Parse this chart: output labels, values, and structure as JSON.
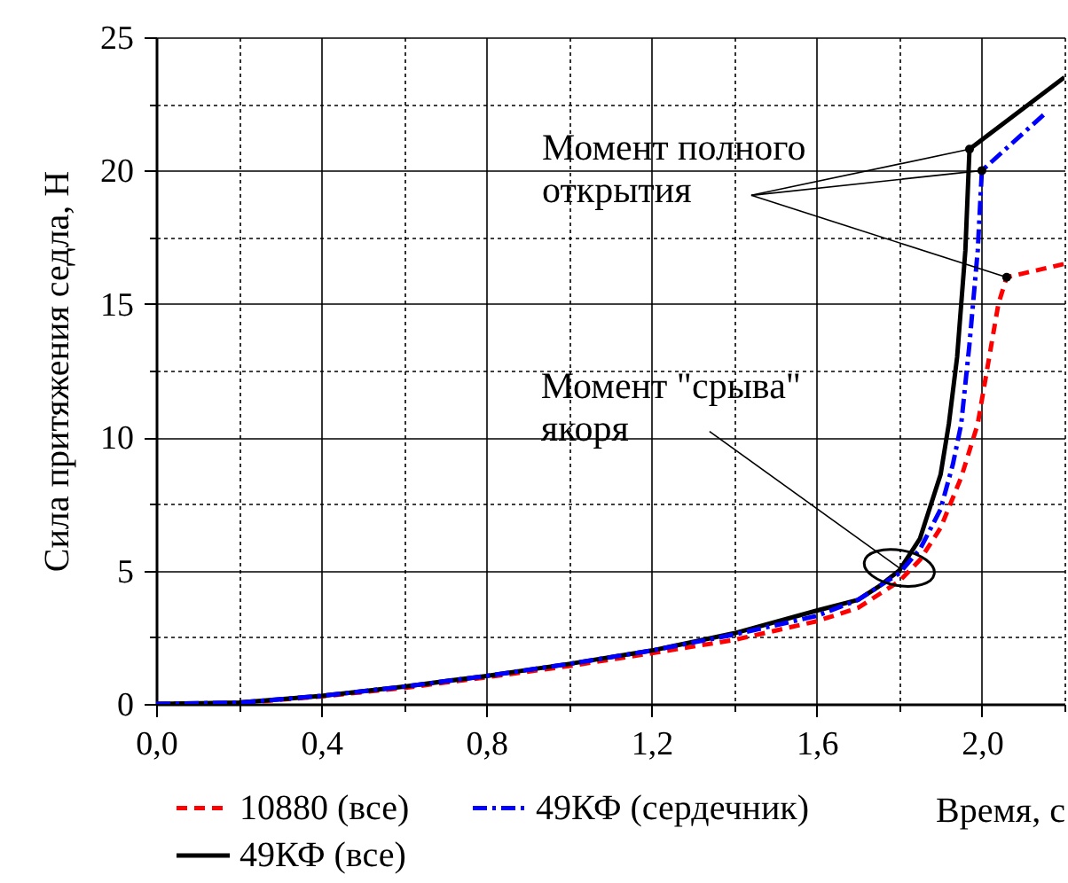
{
  "chart_data": {
    "type": "line",
    "xlabel": "Время, с",
    "ylabel": "Сила притяжения седла, Н",
    "xlim": [
      0,
      2.2
    ],
    "ylim": [
      0,
      25
    ],
    "xticks": [
      {
        "value": 0,
        "label": "0,0"
      },
      {
        "value": 0.2,
        "label": null
      },
      {
        "value": 0.4,
        "label": "0,4"
      },
      {
        "value": 0.6,
        "label": null
      },
      {
        "value": 0.8,
        "label": "0,8"
      },
      {
        "value": 1.0,
        "label": null
      },
      {
        "value": 1.2,
        "label": "1,2"
      },
      {
        "value": 1.4,
        "label": null
      },
      {
        "value": 1.6,
        "label": "1,6"
      },
      {
        "value": 1.8,
        "label": null
      },
      {
        "value": 2.0,
        "label": "2,0"
      },
      {
        "value": 2.2,
        "label": null
      }
    ],
    "yticks": [
      0,
      {
        "value": 2.5,
        "label": null
      },
      5,
      {
        "value": 7.5,
        "label": null
      },
      10,
      {
        "value": 12.5,
        "label": null
      },
      15,
      {
        "value": 17.5,
        "label": null
      },
      20,
      {
        "value": 22.5,
        "label": null
      },
      25
    ],
    "grid": true,
    "legend": "bottom left",
    "annotations": [
      {
        "text": "Момент полного открытия",
        "x": 1.97,
        "y": 20.8
      },
      {
        "text": "Момент \"срыва\" якоря",
        "x": 1.8,
        "y": 5.1
      }
    ],
    "series": [
      {
        "name": "10880 (все)",
        "color": "#ff0000",
        "line_style": "dashed",
        "x": [
          0,
          0.2,
          0.4,
          0.6,
          0.8,
          1.0,
          1.2,
          1.4,
          1.6,
          1.7,
          1.8,
          1.85,
          1.9,
          1.95,
          1.99,
          2.02,
          2.04,
          2.06,
          2.2
        ],
        "values": [
          0,
          0.03,
          0.28,
          0.6,
          1.0,
          1.42,
          1.9,
          2.4,
          3.1,
          3.6,
          4.6,
          5.4,
          6.6,
          8.5,
          10.5,
          13.2,
          15,
          16.0,
          16.5
        ]
      },
      {
        "name": "49КФ (все)",
        "color": "#000000",
        "line_style": "solid",
        "x": [
          0,
          0.2,
          0.4,
          0.6,
          0.8,
          1.0,
          1.2,
          1.4,
          1.6,
          1.7,
          1.75,
          1.8,
          1.85,
          1.9,
          1.92,
          1.94,
          1.96,
          1.97,
          2.2
        ],
        "values": [
          0,
          0.05,
          0.3,
          0.65,
          1.05,
          1.5,
          2.0,
          2.65,
          3.5,
          3.9,
          4.4,
          5.0,
          6.2,
          8.6,
          10.5,
          13,
          17,
          20.8,
          23.5
        ]
      },
      {
        "name": "49КФ (сердечник)",
        "color": "#0000ff",
        "line_style": "dashdot",
        "x": [
          0,
          0.2,
          0.4,
          0.6,
          0.8,
          1.0,
          1.2,
          1.4,
          1.6,
          1.7,
          1.75,
          1.8,
          1.85,
          1.9,
          1.93,
          1.95,
          1.97,
          1.99,
          2.0,
          2.15
        ],
        "values": [
          0,
          0.05,
          0.3,
          0.65,
          1.05,
          1.5,
          2.0,
          2.6,
          3.3,
          3.9,
          4.4,
          4.9,
          5.8,
          7.3,
          9.0,
          10.5,
          13.5,
          17,
          20.0,
          22.1
        ]
      }
    ]
  }
}
